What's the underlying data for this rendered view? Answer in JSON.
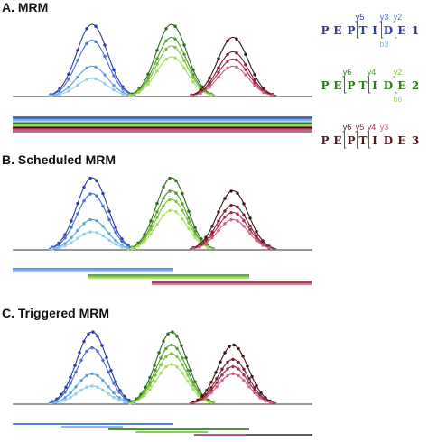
{
  "panels": [
    {
      "title": "A. MRM",
      "mode": "mrm"
    },
    {
      "title": "B. Scheduled MRM",
      "mode": "scheduled"
    },
    {
      "title": "C. Triggered MRM",
      "mode": "triggered"
    }
  ],
  "peptides": [
    {
      "letters": [
        "P",
        "E",
        "P",
        "T",
        "I",
        "D",
        "E",
        "1"
      ],
      "color": "#2b3aa8",
      "labels": [
        {
          "text": "y5",
          "color": "#2b3aa8"
        },
        {
          "text": "y3",
          "color": "#4a6fd0"
        },
        {
          "text": "y2",
          "color": "#4a90d0"
        },
        {
          "text": "b3",
          "color": "#7fc4e8"
        }
      ],
      "trace_colors": [
        "#2b3aa8",
        "#4a6fd0",
        "#5aa0dc",
        "#8fd0ea"
      ],
      "peak_heights": [
        1.0,
        0.78,
        0.42,
        0.25
      ]
    },
    {
      "letters": [
        "P",
        "E",
        "P",
        "T",
        "I",
        "D",
        "E",
        "2"
      ],
      "color": "#2f7a1e",
      "labels": [
        {
          "text": "y6",
          "color": "#2f7a1e"
        },
        {
          "text": "y4",
          "color": "#4e9a2a"
        },
        {
          "text": "y2",
          "color": "#79c23a"
        },
        {
          "text": "b6",
          "color": "#a6e05a"
        }
      ],
      "trace_colors": [
        "#2f6a1e",
        "#4e9a2a",
        "#79c23a",
        "#a6e05a"
      ],
      "peak_heights": [
        1.0,
        0.82,
        0.7,
        0.55
      ]
    },
    {
      "letters": [
        "P",
        "E",
        "P",
        "T",
        "I",
        "D",
        "E",
        "3"
      ],
      "color": "#5a1a1a",
      "labels": [
        {
          "text": "y6",
          "color": "#4a1616"
        },
        {
          "text": "y5",
          "color": "#8a1e3a"
        },
        {
          "text": "y4",
          "color": "#b02a5a"
        },
        {
          "text": "y3",
          "color": "#c85a7a"
        }
      ],
      "trace_colors": [
        "#3a1414",
        "#7a1e2e",
        "#a82a4e",
        "#d0607e"
      ],
      "peak_heights": [
        0.82,
        0.62,
        0.52,
        0.42
      ]
    }
  ]
}
